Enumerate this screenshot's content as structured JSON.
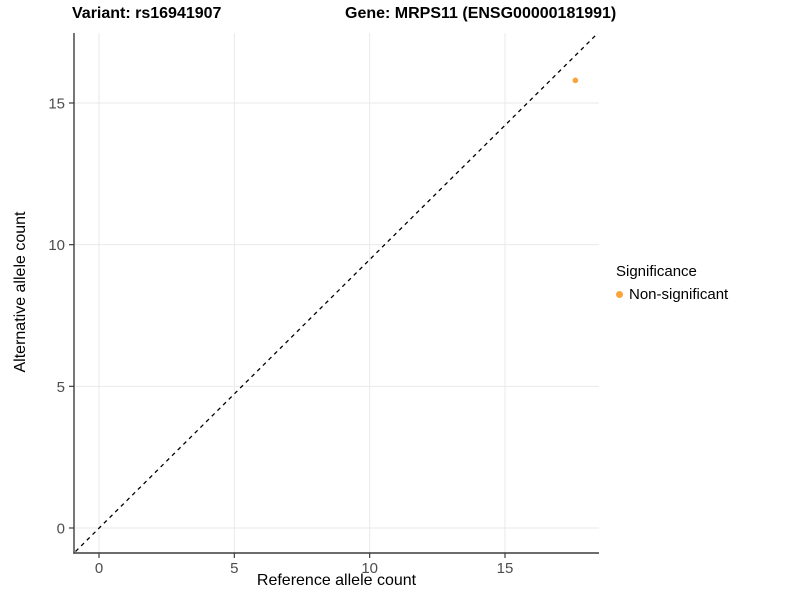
{
  "figure": {
    "title_variant": "Variant: rs16941907",
    "title_gene": "Gene: MRPS11 (ENSG00000181991)"
  },
  "chart_data": {
    "type": "scatter",
    "title": "Variant: rs16941907 — Gene: MRPS11 (ENSG00000181991)",
    "xlabel": "Reference allele count",
    "ylabel": "Alternative allele count",
    "x_ticks": [
      0,
      5,
      10,
      15
    ],
    "y_ticks": [
      0,
      5,
      10,
      15
    ],
    "xlim": [
      -0.9,
      18.5
    ],
    "ylim": [
      -0.9,
      17.5
    ],
    "grid": "major",
    "identity_line": {
      "style": "dashed",
      "slope": 1,
      "intercept": 0
    },
    "series": [
      {
        "name": "Non-significant",
        "color": "#FAA43A",
        "points": [
          {
            "x": 17.6,
            "y": 15.8
          }
        ]
      }
    ],
    "legend": {
      "title": "Significance",
      "position": "right",
      "entries": [
        {
          "label": "Non-significant",
          "color": "#FAA43A"
        }
      ]
    }
  },
  "colors": {
    "point": "#FAA43A",
    "grid": "#E9E9E9",
    "axis_line": "#3c3c3c",
    "tick_text": "#4D4D4D",
    "identity_line": "#000000",
    "background": "#FFFFFF"
  }
}
